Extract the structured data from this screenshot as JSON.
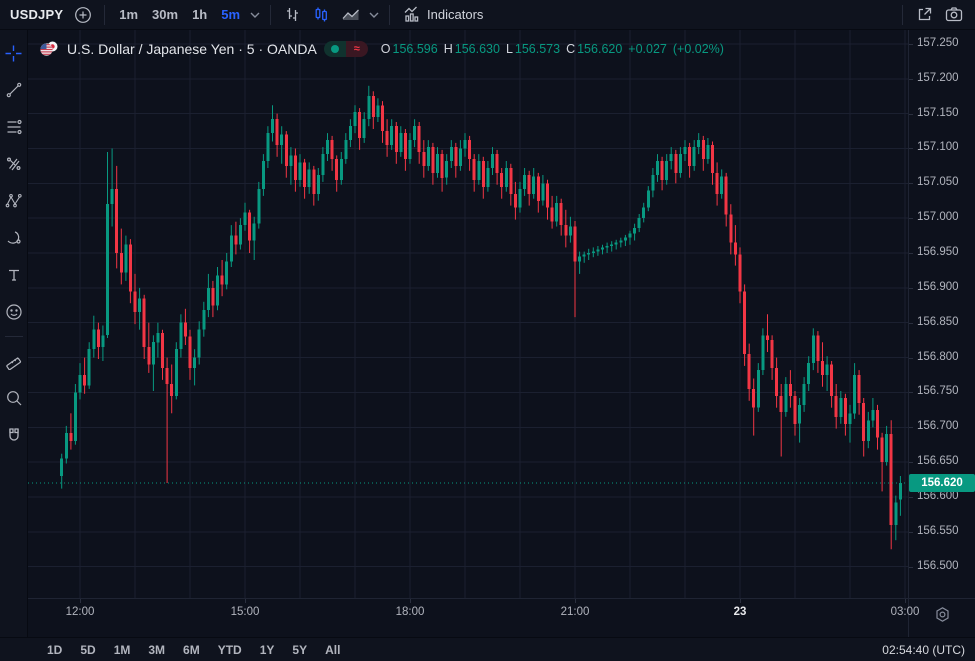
{
  "colors": {
    "up": "#089981",
    "down": "#f23645",
    "accent_blue": "#2962ff",
    "background": "#0d111c",
    "grid": "#1b2030",
    "text_primary": "#d1d4dc",
    "text_muted": "#b2b5be",
    "badge_bg": "#089981"
  },
  "toolbar": {
    "symbol": "USDJPY",
    "timeframes": [
      {
        "label": "1m",
        "active": false
      },
      {
        "label": "30m",
        "active": false
      },
      {
        "label": "1h",
        "active": false
      },
      {
        "label": "5m",
        "active": true
      }
    ],
    "chart_types": [
      "bars",
      "candles",
      "area"
    ],
    "active_chart_type": "candles",
    "indicators_label": "Indicators"
  },
  "sidebar": {
    "tools": [
      "crosshair",
      "trendline",
      "fib-retracement",
      "pitchfork",
      "xabcd-pattern",
      "brush",
      "text",
      "emoji",
      "separator",
      "ruler",
      "zoom-in",
      "magnet"
    ]
  },
  "legend": {
    "title": "U.S. Dollar / Japanese Yen · 5 · OANDA",
    "market_status_dot": "open",
    "approx_symbol": "≈",
    "o_label": "O",
    "o": "156.596",
    "h_label": "H",
    "h": "156.630",
    "l_label": "L",
    "l": "156.573",
    "c_label": "C",
    "c": "156.620",
    "change": "+0.027",
    "change_pct": "(+0.02%)"
  },
  "price_axis": {
    "ticks": [
      "157.250",
      "157.200",
      "157.150",
      "157.100",
      "157.050",
      "157.000",
      "156.950",
      "156.900",
      "156.850",
      "156.800",
      "156.750",
      "156.700",
      "156.650",
      "156.600",
      "156.550",
      "156.500"
    ],
    "current_price_label": "156.620"
  },
  "time_axis": {
    "ticks": [
      {
        "i": 4,
        "label": "12:00",
        "bold": false
      },
      {
        "i": 40,
        "label": "15:00",
        "bold": false
      },
      {
        "i": 76,
        "label": "18:00",
        "bold": false
      },
      {
        "i": 112,
        "label": "21:00",
        "bold": false
      },
      {
        "i": 148,
        "label": "23",
        "bold": true
      },
      {
        "i": 184,
        "label": "03:00",
        "bold": false
      }
    ]
  },
  "bottom_bar": {
    "ranges": [
      "1D",
      "5D",
      "1M",
      "3M",
      "6M",
      "YTD",
      "1Y",
      "5Y",
      "All"
    ],
    "clock": "02:54:40 (UTC)"
  },
  "chart_data": {
    "type": "candlestick",
    "title": "U.S. Dollar / Japanese Yen",
    "symbol": "USDJPY",
    "exchange": "OANDA",
    "interval_minutes": 5,
    "start_time": "11:40",
    "step_minutes": 5,
    "ylim": [
      156.455,
      157.27
    ],
    "current_price": 156.62,
    "grid": true,
    "candles_ohlc": [
      [
        156.63,
        156.662,
        156.612,
        156.655
      ],
      [
        156.655,
        156.702,
        156.648,
        156.692
      ],
      [
        156.692,
        156.72,
        156.668,
        156.68
      ],
      [
        156.68,
        156.762,
        156.675,
        156.75
      ],
      [
        156.75,
        156.792,
        156.74,
        156.775
      ],
      [
        156.775,
        156.8,
        156.748,
        156.76
      ],
      [
        156.76,
        156.822,
        156.755,
        156.812
      ],
      [
        156.812,
        156.86,
        156.8,
        156.84
      ],
      [
        156.84,
        156.85,
        156.798,
        156.815
      ],
      [
        156.815,
        156.846,
        156.795,
        156.832
      ],
      [
        156.832,
        157.095,
        156.828,
        157.02
      ],
      [
        157.02,
        157.1,
        156.988,
        157.042
      ],
      [
        157.042,
        157.075,
        156.928,
        156.95
      ],
      [
        156.95,
        156.985,
        156.905,
        156.922
      ],
      [
        156.922,
        156.975,
        156.91,
        156.962
      ],
      [
        156.962,
        156.97,
        156.878,
        156.895
      ],
      [
        156.895,
        156.92,
        156.848,
        156.865
      ],
      [
        156.865,
        156.9,
        156.84,
        156.885
      ],
      [
        156.885,
        156.89,
        156.798,
        156.815
      ],
      [
        156.815,
        156.85,
        156.778,
        156.79
      ],
      [
        156.79,
        156.832,
        156.752,
        156.822
      ],
      [
        156.822,
        156.85,
        156.8,
        156.835
      ],
      [
        156.835,
        156.84,
        156.768,
        156.785
      ],
      [
        156.785,
        156.8,
        156.62,
        156.762
      ],
      [
        156.762,
        156.79,
        156.72,
        156.745
      ],
      [
        156.745,
        156.822,
        156.74,
        156.812
      ],
      [
        156.812,
        156.862,
        156.8,
        156.85
      ],
      [
        156.85,
        156.87,
        156.818,
        156.83
      ],
      [
        156.83,
        156.84,
        156.768,
        156.785
      ],
      [
        156.785,
        156.812,
        156.76,
        156.8
      ],
      [
        156.8,
        156.852,
        156.79,
        156.84
      ],
      [
        156.84,
        156.88,
        156.83,
        156.868
      ],
      [
        156.868,
        156.92,
        156.858,
        156.9
      ],
      [
        156.9,
        156.91,
        156.858,
        156.875
      ],
      [
        156.875,
        156.93,
        156.868,
        156.918
      ],
      [
        156.918,
        156.94,
        156.888,
        156.905
      ],
      [
        156.905,
        156.95,
        156.898,
        156.938
      ],
      [
        156.938,
        156.99,
        156.93,
        156.975
      ],
      [
        156.975,
        156.995,
        156.948,
        156.962
      ],
      [
        156.962,
        157.0,
        156.955,
        156.99
      ],
      [
        156.99,
        157.022,
        156.982,
        157.008
      ],
      [
        157.008,
        157.012,
        156.95,
        156.968
      ],
      [
        156.968,
        157.002,
        156.94,
        156.992
      ],
      [
        156.992,
        157.052,
        156.985,
        157.042
      ],
      [
        157.042,
        157.092,
        157.032,
        157.082
      ],
      [
        157.082,
        157.132,
        157.072,
        157.122
      ],
      [
        157.122,
        157.162,
        157.11,
        157.142
      ],
      [
        157.142,
        157.15,
        157.088,
        157.105
      ],
      [
        157.105,
        157.132,
        157.078,
        157.12
      ],
      [
        157.12,
        157.125,
        157.058,
        157.075
      ],
      [
        157.075,
        157.102,
        157.048,
        157.09
      ],
      [
        157.09,
        157.1,
        157.038,
        157.055
      ],
      [
        157.055,
        157.092,
        157.045,
        157.08
      ],
      [
        157.08,
        157.085,
        157.028,
        157.045
      ],
      [
        157.045,
        157.08,
        157.035,
        157.07
      ],
      [
        157.07,
        157.075,
        157.018,
        157.035
      ],
      [
        157.035,
        157.072,
        157.025,
        157.062
      ],
      [
        157.062,
        157.102,
        157.052,
        157.092
      ],
      [
        157.092,
        157.122,
        157.082,
        157.112
      ],
      [
        157.112,
        157.118,
        157.068,
        157.085
      ],
      [
        157.085,
        157.09,
        157.038,
        157.055
      ],
      [
        157.055,
        157.095,
        157.048,
        157.085
      ],
      [
        157.085,
        157.122,
        157.078,
        157.112
      ],
      [
        157.112,
        157.142,
        157.102,
        157.132
      ],
      [
        157.132,
        157.162,
        157.122,
        157.152
      ],
      [
        157.152,
        157.158,
        157.098,
        157.115
      ],
      [
        157.115,
        157.152,
        157.108,
        157.142
      ],
      [
        157.142,
        157.19,
        157.132,
        157.175
      ],
      [
        157.175,
        157.182,
        157.128,
        157.145
      ],
      [
        157.145,
        157.172,
        157.138,
        157.162
      ],
      [
        157.162,
        157.168,
        157.108,
        157.125
      ],
      [
        157.125,
        157.142,
        157.088,
        157.105
      ],
      [
        157.105,
        157.142,
        157.098,
        157.132
      ],
      [
        157.132,
        157.138,
        157.078,
        157.095
      ],
      [
        157.095,
        157.132,
        157.088,
        157.122
      ],
      [
        157.122,
        157.128,
        157.068,
        157.085
      ],
      [
        157.085,
        157.122,
        157.078,
        157.112
      ],
      [
        157.112,
        157.142,
        157.102,
        157.132
      ],
      [
        157.132,
        157.138,
        157.078,
        157.095
      ],
      [
        157.095,
        157.112,
        157.058,
        157.075
      ],
      [
        157.075,
        157.112,
        157.068,
        157.102
      ],
      [
        157.102,
        157.108,
        157.048,
        157.065
      ],
      [
        157.065,
        157.102,
        157.058,
        157.092
      ],
      [
        157.092,
        157.098,
        157.038,
        157.058
      ],
      [
        157.058,
        157.092,
        157.048,
        157.082
      ],
      [
        157.082,
        157.112,
        157.072,
        157.102
      ],
      [
        157.102,
        157.108,
        157.058,
        157.075
      ],
      [
        157.075,
        157.112,
        157.068,
        157.1
      ],
      [
        157.1,
        157.122,
        157.088,
        157.112
      ],
      [
        157.112,
        157.118,
        157.068,
        157.085
      ],
      [
        157.085,
        157.092,
        157.038,
        157.055
      ],
      [
        157.055,
        157.092,
        157.048,
        157.082
      ],
      [
        157.082,
        157.088,
        157.028,
        157.045
      ],
      [
        157.045,
        157.082,
        157.038,
        157.072
      ],
      [
        157.072,
        157.102,
        157.062,
        157.092
      ],
      [
        157.092,
        157.098,
        157.048,
        157.065
      ],
      [
        157.065,
        157.072,
        157.028,
        157.045
      ],
      [
        157.045,
        157.082,
        157.038,
        157.072
      ],
      [
        157.072,
        157.078,
        157.018,
        157.035
      ],
      [
        157.035,
        157.052,
        156.998,
        157.015
      ],
      [
        157.015,
        157.052,
        157.008,
        157.042
      ],
      [
        157.042,
        157.072,
        157.032,
        157.062
      ],
      [
        157.062,
        157.068,
        157.018,
        157.035
      ],
      [
        157.035,
        157.072,
        157.028,
        157.06
      ],
      [
        157.06,
        157.065,
        157.008,
        157.025
      ],
      [
        157.025,
        157.062,
        157.018,
        157.05
      ],
      [
        157.05,
        157.055,
        156.998,
        157.015
      ],
      [
        157.015,
        157.032,
        156.985,
        156.995
      ],
      [
        156.995,
        157.032,
        156.988,
        157.022
      ],
      [
        157.022,
        157.028,
        156.975,
        156.99
      ],
      [
        156.99,
        157.012,
        156.958,
        156.975
      ],
      [
        156.975,
        157.002,
        156.965,
        156.988
      ],
      [
        156.988,
        156.996,
        156.858,
        156.938
      ],
      [
        156.938,
        156.952,
        156.92,
        156.945
      ],
      [
        156.945,
        156.952,
        156.936,
        156.948
      ],
      [
        156.948,
        156.956,
        156.94,
        156.95
      ],
      [
        156.95,
        156.958,
        156.944,
        156.952
      ],
      [
        156.952,
        156.96,
        156.946,
        156.955
      ],
      [
        156.955,
        156.962,
        156.948,
        156.958
      ],
      [
        156.958,
        156.965,
        156.95,
        156.96
      ],
      [
        156.96,
        156.967,
        156.952,
        156.962
      ],
      [
        156.962,
        156.969,
        156.955,
        156.965
      ],
      [
        156.965,
        156.972,
        156.958,
        156.968
      ],
      [
        156.968,
        156.976,
        156.96,
        156.972
      ],
      [
        156.972,
        156.982,
        156.962,
        156.978
      ],
      [
        156.978,
        156.992,
        156.968,
        156.986
      ],
      [
        156.986,
        157.006,
        156.98,
        157.0
      ],
      [
        157.0,
        157.022,
        156.994,
        157.015
      ],
      [
        157.015,
        157.046,
        157.01,
        157.04
      ],
      [
        157.04,
        157.072,
        157.03,
        157.062
      ],
      [
        157.062,
        157.092,
        157.052,
        157.082
      ],
      [
        157.082,
        157.088,
        157.04,
        157.055
      ],
      [
        157.055,
        157.092,
        157.048,
        157.082
      ],
      [
        157.082,
        157.102,
        157.07,
        157.092
      ],
      [
        157.092,
        157.098,
        157.05,
        157.065
      ],
      [
        157.065,
        157.102,
        157.058,
        157.092
      ],
      [
        157.092,
        157.112,
        157.082,
        157.102
      ],
      [
        157.102,
        157.108,
        157.058,
        157.075
      ],
      [
        157.075,
        157.112,
        157.068,
        157.102
      ],
      [
        157.102,
        157.122,
        157.092,
        157.112
      ],
      [
        157.112,
        157.118,
        157.068,
        157.085
      ],
      [
        157.085,
        157.115,
        157.078,
        157.105
      ],
      [
        157.105,
        157.11,
        157.048,
        157.065
      ],
      [
        157.065,
        157.08,
        157.018,
        157.035
      ],
      [
        157.035,
        157.07,
        157.028,
        157.06
      ],
      [
        157.06,
        157.065,
        156.988,
        157.005
      ],
      [
        157.005,
        157.02,
        156.948,
        156.965
      ],
      [
        156.965,
        156.99,
        156.932,
        156.948
      ],
      [
        156.948,
        156.958,
        156.878,
        156.895
      ],
      [
        156.895,
        156.905,
        156.788,
        156.805
      ],
      [
        156.805,
        156.82,
        156.738,
        156.755
      ],
      [
        156.755,
        156.77,
        156.688,
        156.728
      ],
      [
        156.728,
        156.792,
        156.722,
        156.782
      ],
      [
        156.782,
        156.842,
        156.775,
        156.832
      ],
      [
        156.832,
        156.862,
        156.808,
        156.825
      ],
      [
        156.825,
        156.832,
        156.768,
        156.785
      ],
      [
        156.785,
        156.8,
        156.728,
        156.745
      ],
      [
        156.745,
        156.762,
        156.658,
        156.722
      ],
      [
        156.722,
        156.772,
        156.715,
        156.762
      ],
      [
        156.762,
        156.782,
        156.728,
        156.745
      ],
      [
        156.745,
        156.752,
        156.688,
        156.705
      ],
      [
        156.705,
        156.742,
        156.678,
        156.732
      ],
      [
        156.732,
        156.772,
        156.722,
        156.762
      ],
      [
        156.762,
        156.802,
        156.752,
        156.792
      ],
      [
        156.792,
        156.842,
        156.782,
        156.832
      ],
      [
        156.832,
        156.838,
        156.778,
        156.795
      ],
      [
        156.795,
        156.822,
        156.758,
        156.775
      ],
      [
        156.775,
        156.802,
        156.752,
        156.79
      ],
      [
        156.79,
        156.795,
        156.728,
        156.745
      ],
      [
        156.745,
        156.762,
        156.698,
        156.715
      ],
      [
        156.715,
        156.752,
        156.705,
        156.742
      ],
      [
        156.742,
        156.748,
        156.688,
        156.705
      ],
      [
        156.705,
        156.732,
        156.678,
        156.72
      ],
      [
        156.72,
        156.792,
        156.712,
        156.775
      ],
      [
        156.775,
        156.782,
        156.718,
        156.735
      ],
      [
        156.735,
        156.742,
        156.658,
        156.68
      ],
      [
        156.68,
        156.722,
        156.67,
        156.71
      ],
      [
        156.71,
        156.742,
        156.7,
        156.725
      ],
      [
        156.725,
        156.732,
        156.668,
        156.685
      ],
      [
        156.685,
        156.692,
        156.608,
        156.65
      ],
      [
        156.65,
        156.702,
        156.645,
        156.69
      ],
      [
        156.69,
        156.71,
        156.525,
        156.56
      ],
      [
        156.56,
        156.602,
        156.538,
        156.592
      ],
      [
        156.596,
        156.63,
        156.573,
        156.62
      ]
    ]
  }
}
